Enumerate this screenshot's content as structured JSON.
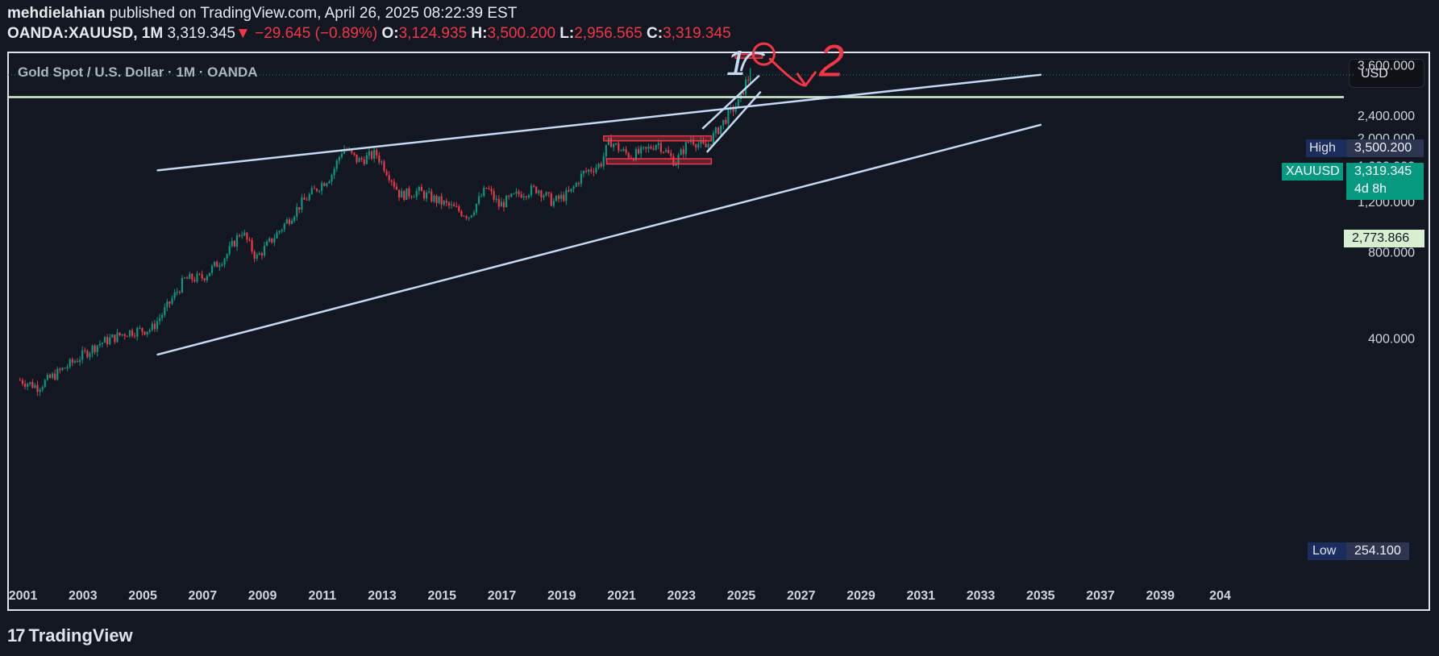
{
  "header": {
    "author": "mehdielahian",
    "published": "published on TradingView.com, April 26, 2025 08:22:39 EST",
    "symbol": "OANDA:XAUUSD, 1M",
    "last": "3,319.345",
    "change": "−29.645 (−0.89%)",
    "o_label": "O:",
    "o_value": "3,124.935",
    "h_label": "H:",
    "h_value": "3,500.200",
    "l_label": "L:",
    "l_value": "2,956.565",
    "c_label": "C:",
    "c_value": "3,319.345"
  },
  "chart_title": "Gold Spot / U.S. Dollar · 1M · OANDA",
  "currency_button": "USD",
  "labels": {
    "high_title": "High",
    "high_value": "3,500.200",
    "ticker": "XAUUSD",
    "price": "3,319.345",
    "countdown": "4d 8h",
    "hline_value": "2,773.866",
    "low_title": "Low",
    "low_value": "254.100"
  },
  "annotations": {
    "wave1": "1",
    "wave2": "2"
  },
  "brand": "TradingView",
  "colors": {
    "bg": "#131722",
    "up": "#089981",
    "down": "#f23645",
    "channel": "#c5d9f5",
    "hline": "#d7efd0",
    "zone": "#f23645",
    "arrow2": "#f23645"
  },
  "chart_data": {
    "type": "candlestick",
    "interval": "1M",
    "x_ticks": [
      "2001",
      "2003",
      "2005",
      "2007",
      "2009",
      "2011",
      "2013",
      "2015",
      "2017",
      "2019",
      "2021",
      "2023",
      "2025",
      "2027",
      "2029",
      "2031",
      "2033",
      "2035",
      "2037",
      "2039",
      "204"
    ],
    "y_ticks": [
      "400.000",
      "800.000",
      "1,200.000",
      "1,600.000",
      "2,000.000",
      "2,400.000",
      "3,600.000"
    ],
    "y_tick_values": [
      400,
      800,
      1200,
      1600,
      2000,
      2400,
      3600
    ],
    "ylim": [
      60,
      3950
    ],
    "xlim": [
      2000.5,
      2045.0
    ],
    "price_path": [
      [
        2000.9,
        285
      ],
      [
        2001.5,
        270
      ],
      [
        2002.5,
        320
      ],
      [
        2003.5,
        380
      ],
      [
        2004.5,
        420
      ],
      [
        2005.3,
        430
      ],
      [
        2005.8,
        510
      ],
      [
        2006.4,
        640
      ],
      [
        2007.0,
        650
      ],
      [
        2007.8,
        780
      ],
      [
        2008.3,
        950
      ],
      [
        2008.8,
        760
      ],
      [
        2009.5,
        930
      ],
      [
        2010.3,
        1180
      ],
      [
        2010.9,
        1360
      ],
      [
        2011.3,
        1480
      ],
      [
        2011.7,
        1850
      ],
      [
        2012.2,
        1660
      ],
      [
        2012.8,
        1760
      ],
      [
        2013.3,
        1450
      ],
      [
        2013.6,
        1260
      ],
      [
        2014.2,
        1300
      ],
      [
        2014.9,
        1200
      ],
      [
        2015.9,
        1070
      ],
      [
        2016.5,
        1340
      ],
      [
        2016.9,
        1160
      ],
      [
        2017.6,
        1280
      ],
      [
        2018.2,
        1330
      ],
      [
        2018.7,
        1190
      ],
      [
        2019.3,
        1290
      ],
      [
        2019.7,
        1500
      ],
      [
        2020.3,
        1620
      ],
      [
        2020.6,
        1960
      ],
      [
        2021.0,
        1800
      ],
      [
        2021.3,
        1730
      ],
      [
        2021.8,
        1800
      ],
      [
        2022.2,
        1930
      ],
      [
        2022.8,
        1640
      ],
      [
        2023.3,
        1990
      ],
      [
        2023.8,
        1840
      ],
      [
        2024.1,
        2050
      ],
      [
        2024.6,
        2430
      ],
      [
        2024.9,
        2650
      ],
      [
        2025.0,
        2800
      ],
      [
        2025.15,
        3120
      ],
      [
        2025.3,
        3319
      ]
    ],
    "high": 3500.2,
    "low": 254.1,
    "last": 3319.345,
    "horizontal_line": 2773.866,
    "channel_upper": [
      [
        2005.5,
        1540
      ],
      [
        2035.0,
        3320
      ]
    ],
    "channel_lower": [
      [
        2005.5,
        350
      ],
      [
        2035.0,
        2220
      ]
    ],
    "zones": [
      [
        2020.4,
        2024.0,
        1960,
        2030
      ],
      [
        2020.5,
        2024.0,
        1620,
        1690
      ]
    ],
    "ath_zone": [
      2024.8,
      2025.7,
      3880,
      3920
    ]
  }
}
